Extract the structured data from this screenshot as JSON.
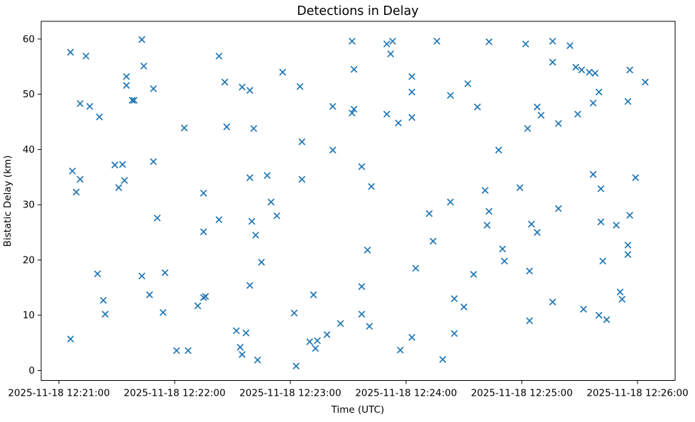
{
  "chart_data": {
    "type": "scatter",
    "title": "Detections in Delay",
    "xlabel": "Time (UTC)",
    "ylabel": "Bistatic Delay (km)",
    "marker": "x",
    "marker_color": "#1f77b4",
    "grid": false,
    "legend": null,
    "x_unit": "seconds after 2025-11-18 12:21:00 UTC",
    "xlim": [
      -9.2,
      319.5
    ],
    "ylim": [
      -1.8,
      63.2
    ],
    "x_ticks": [
      {
        "t": 0,
        "label": "2025-11-18 12:21:00"
      },
      {
        "t": 60,
        "label": "2025-11-18 12:22:00"
      },
      {
        "t": 120,
        "label": "2025-11-18 12:23:00"
      },
      {
        "t": 180,
        "label": "2025-11-18 12:24:00"
      },
      {
        "t": 240,
        "label": "2025-11-18 12:25:00"
      },
      {
        "t": 300,
        "label": "2025-11-18 12:26:00"
      }
    ],
    "y_ticks": [
      0,
      10,
      20,
      30,
      40,
      50,
      60
    ],
    "points": [
      [
        6,
        57.6
      ],
      [
        6,
        5.7
      ],
      [
        7,
        36.1
      ],
      [
        9,
        32.3
      ],
      [
        11,
        48.3
      ],
      [
        11,
        34.6
      ],
      [
        14,
        56.9
      ],
      [
        16,
        47.8
      ],
      [
        20,
        17.5
      ],
      [
        21,
        45.9
      ],
      [
        23,
        12.7
      ],
      [
        24,
        10.2
      ],
      [
        29,
        37.2
      ],
      [
        31,
        33.1
      ],
      [
        33,
        37.3
      ],
      [
        34,
        34.4
      ],
      [
        35,
        53.2
      ],
      [
        35,
        51.6
      ],
      [
        38,
        48.9
      ],
      [
        39,
        48.9
      ],
      [
        43,
        59.9
      ],
      [
        43,
        17.1
      ],
      [
        44,
        55.1
      ],
      [
        47,
        13.7
      ],
      [
        49,
        51.0
      ],
      [
        49,
        37.8
      ],
      [
        51,
        27.6
      ],
      [
        54,
        10.5
      ],
      [
        55,
        17.7
      ],
      [
        61,
        3.6
      ],
      [
        65,
        43.9
      ],
      [
        67,
        3.6
      ],
      [
        72,
        11.7
      ],
      [
        75,
        32.1
      ],
      [
        75,
        25.1
      ],
      [
        75,
        13.2
      ],
      [
        76,
        13.4
      ],
      [
        83,
        56.9
      ],
      [
        83,
        27.3
      ],
      [
        86,
        52.2
      ],
      [
        87,
        44.1
      ],
      [
        92,
        7.2
      ],
      [
        94,
        4.2
      ],
      [
        95,
        51.3
      ],
      [
        95,
        2.9
      ],
      [
        97,
        6.8
      ],
      [
        99,
        50.7
      ],
      [
        99,
        34.9
      ],
      [
        99,
        15.4
      ],
      [
        100,
        27.0
      ],
      [
        101,
        43.8
      ],
      [
        102,
        24.5
      ],
      [
        103,
        1.9
      ],
      [
        105,
        19.6
      ],
      [
        108,
        35.3
      ],
      [
        110,
        30.5
      ],
      [
        113,
        28.0
      ],
      [
        116,
        54.0
      ],
      [
        122,
        10.4
      ],
      [
        123,
        0.8
      ],
      [
        125,
        51.4
      ],
      [
        126,
        41.4
      ],
      [
        126,
        34.6
      ],
      [
        130,
        5.2
      ],
      [
        132,
        13.7
      ],
      [
        133,
        4.0
      ],
      [
        134,
        5.4
      ],
      [
        139,
        6.5
      ],
      [
        142,
        47.8
      ],
      [
        142,
        39.9
      ],
      [
        146,
        8.5
      ],
      [
        152,
        59.6
      ],
      [
        152,
        46.6
      ],
      [
        153,
        54.5
      ],
      [
        153,
        47.3
      ],
      [
        157,
        36.9
      ],
      [
        157,
        15.2
      ],
      [
        157,
        10.2
      ],
      [
        160,
        21.8
      ],
      [
        161,
        8.0
      ],
      [
        162,
        33.3
      ],
      [
        170,
        59.1
      ],
      [
        170,
        46.4
      ],
      [
        172,
        57.3
      ],
      [
        173,
        59.6
      ],
      [
        176,
        44.8
      ],
      [
        177,
        3.7
      ],
      [
        183,
        53.2
      ],
      [
        183,
        50.4
      ],
      [
        183,
        45.8
      ],
      [
        183,
        6.0
      ],
      [
        185,
        18.5
      ],
      [
        192,
        28.4
      ],
      [
        194,
        23.4
      ],
      [
        196,
        59.6
      ],
      [
        199,
        2.0
      ],
      [
        203,
        49.8
      ],
      [
        203,
        30.5
      ],
      [
        205,
        13.0
      ],
      [
        205,
        6.7
      ],
      [
        210,
        11.5
      ],
      [
        212,
        51.9
      ],
      [
        215,
        17.4
      ],
      [
        217,
        47.7
      ],
      [
        221,
        32.6
      ],
      [
        222,
        26.3
      ],
      [
        223,
        59.5
      ],
      [
        223,
        28.8
      ],
      [
        228,
        39.9
      ],
      [
        230,
        22.0
      ],
      [
        231,
        19.8
      ],
      [
        239,
        33.1
      ],
      [
        242,
        59.1
      ],
      [
        243,
        43.8
      ],
      [
        244,
        18.0
      ],
      [
        244,
        9.0
      ],
      [
        245,
        26.5
      ],
      [
        248,
        47.7
      ],
      [
        248,
        25.0
      ],
      [
        250,
        46.2
      ],
      [
        256,
        59.6
      ],
      [
        256,
        55.8
      ],
      [
        256,
        12.4
      ],
      [
        259,
        44.7
      ],
      [
        259,
        29.3
      ],
      [
        265,
        58.8
      ],
      [
        268,
        54.9
      ],
      [
        269,
        46.4
      ],
      [
        271,
        54.4
      ],
      [
        272,
        11.1
      ],
      [
        275,
        54.0
      ],
      [
        277,
        48.4
      ],
      [
        277,
        35.5
      ],
      [
        278,
        53.8
      ],
      [
        280,
        50.4
      ],
      [
        280,
        10.0
      ],
      [
        281,
        32.9
      ],
      [
        281,
        26.9
      ],
      [
        282,
        19.8
      ],
      [
        284,
        9.2
      ],
      [
        289,
        26.3
      ],
      [
        291,
        14.2
      ],
      [
        292,
        12.9
      ],
      [
        295,
        48.7
      ],
      [
        295,
        22.7
      ],
      [
        295,
        21.0
      ],
      [
        296,
        54.4
      ],
      [
        296,
        28.1
      ],
      [
        299,
        34.9
      ],
      [
        304,
        52.2
      ]
    ]
  }
}
